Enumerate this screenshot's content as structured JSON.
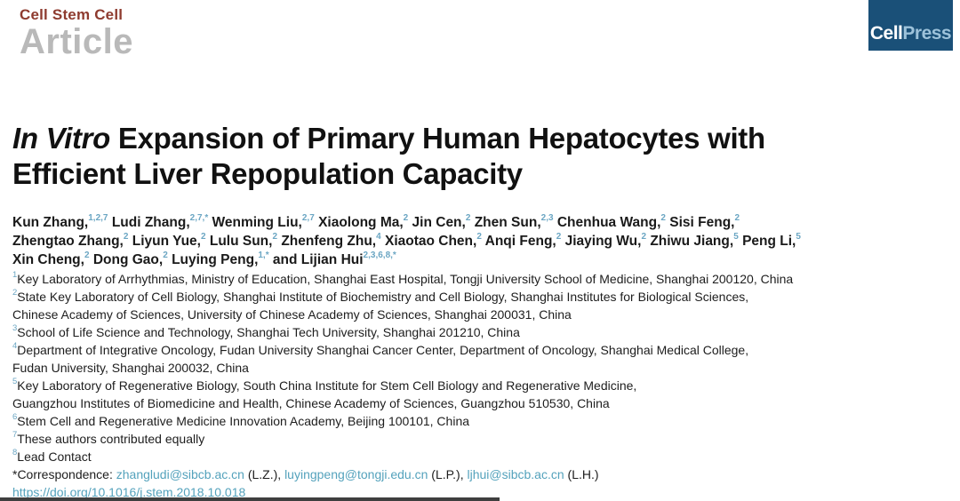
{
  "masthead": {
    "journal": "Cell Stem Cell",
    "article_type": "Article"
  },
  "publisher": {
    "logo_cell": "Cell",
    "logo_press": "Press",
    "brand_navy": "#1a5078",
    "brand_light_blue": "#9dc2da"
  },
  "colors": {
    "journal_red": "#8e3b2f",
    "article_gray": "#b9b9b9",
    "superscript_blue": "#6ba6c3",
    "link_teal": "#54a2bc",
    "body_text": "#1d1d1d"
  },
  "title": {
    "italic_part": "In Vitro",
    "rest_part": " Expansion of Primary Human Hepatocytes with Efficient Liver Repopulation Capacity"
  },
  "authors": {
    "lines": [
      [
        {
          "text": "Kun Zhang,",
          "sup": "1,2,7"
        },
        {
          "text": "Ludi Zhang,",
          "sup": "2,7,*"
        },
        {
          "text": "Wenming Liu,",
          "sup": "2,7"
        },
        {
          "text": "Xiaolong Ma,",
          "sup": "2"
        },
        {
          "text": "Jin Cen,",
          "sup": "2"
        },
        {
          "text": "Zhen Sun,",
          "sup": "2,3"
        },
        {
          "text": "Chenhua Wang,",
          "sup": "2"
        },
        {
          "text": "Sisi Feng,",
          "sup": "2"
        }
      ],
      [
        {
          "text": "Zhengtao Zhang,",
          "sup": "2"
        },
        {
          "text": "Liyun Yue,",
          "sup": "2"
        },
        {
          "text": "Lulu Sun,",
          "sup": "2"
        },
        {
          "text": "Zhenfeng Zhu,",
          "sup": "4"
        },
        {
          "text": "Xiaotao Chen,",
          "sup": "2"
        },
        {
          "text": "Anqi Feng,",
          "sup": "2"
        },
        {
          "text": "Jiaying Wu,",
          "sup": "2"
        },
        {
          "text": "Zhiwu Jiang,",
          "sup": "5"
        },
        {
          "text": "Peng Li,",
          "sup": "5"
        }
      ],
      [
        {
          "text": "Xin Cheng,",
          "sup": "2"
        },
        {
          "text": "Dong Gao,",
          "sup": "2"
        },
        {
          "text": "Luying Peng,",
          "sup": "1,*"
        },
        {
          "text": "and Lijian Hui",
          "sup": "2,3,6,8,*"
        }
      ]
    ]
  },
  "affiliations": [
    {
      "sup": "1",
      "text": "Key Laboratory of Arrhythmias, Ministry of Education, Shanghai East Hospital, Tongji University School of Medicine, Shanghai 200120, China"
    },
    {
      "sup": "2",
      "text": "State Key Laboratory of Cell Biology, Shanghai Institute of Biochemistry and Cell Biology, Shanghai Institutes for Biological Sciences,"
    },
    {
      "sup": "",
      "text": "Chinese Academy of Sciences, University of Chinese Academy of Sciences, Shanghai 200031, China"
    },
    {
      "sup": "3",
      "text": "School of Life Science and Technology, Shanghai Tech University, Shanghai 201210, China"
    },
    {
      "sup": "4",
      "text": "Department of Integrative Oncology, Fudan University Shanghai Cancer Center, Department of Oncology, Shanghai Medical College,"
    },
    {
      "sup": "",
      "text": "Fudan University, Shanghai 200032, China"
    },
    {
      "sup": "5",
      "text": "Key Laboratory of Regenerative Biology, South China Institute for Stem Cell Biology and Regenerative Medicine,"
    },
    {
      "sup": "",
      "text": "Guangzhou Institutes of Biomedicine and Health, Chinese Academy of Sciences, Guangzhou 510530, China"
    },
    {
      "sup": "6",
      "text": "Stem Cell and Regenerative Medicine Innovation Academy, Beijing 100101, China"
    },
    {
      "sup": "7",
      "text": "These authors contributed equally"
    },
    {
      "sup": "8",
      "text": "Lead Contact"
    }
  ],
  "correspondence": {
    "prefix": "*Correspondence: ",
    "contacts": [
      {
        "email": "zhangludi@sibcb.ac.cn",
        "suffix": " (L.Z.), "
      },
      {
        "email": "luyingpeng@tongji.edu.cn",
        "suffix": " (L.P.), "
      },
      {
        "email": "ljhui@sibcb.ac.cn",
        "suffix": " (L.H.)"
      }
    ]
  },
  "doi": "https://doi.org/10.1016/j.stem.2018.10.018"
}
